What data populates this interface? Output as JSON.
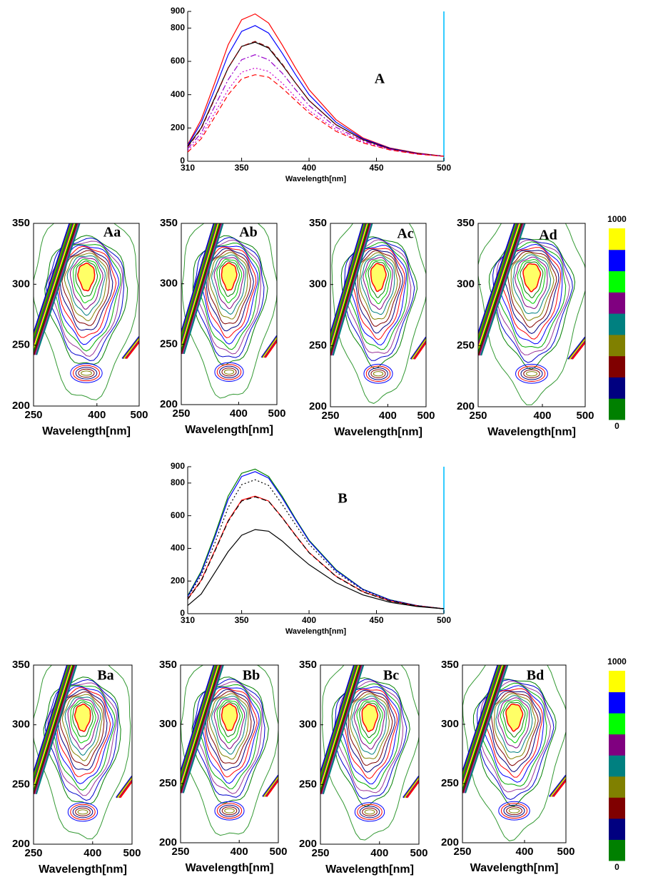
{
  "chart_data": [
    {
      "type": "line",
      "label": "A",
      "xlabel": "Wavelength[nm]",
      "x": [
        310,
        320,
        330,
        340,
        350,
        360,
        370,
        380,
        390,
        400,
        420,
        440,
        460,
        480,
        500
      ],
      "xlim": [
        310,
        500
      ],
      "xticks": [
        310,
        350,
        400,
        450,
        500
      ],
      "ylim": [
        0,
        900
      ],
      "yticks": [
        0,
        200,
        400,
        600,
        800,
        900
      ],
      "series": [
        {
          "color": "#ff0000",
          "dash": "solid",
          "values": [
            100,
            250,
            470,
            700,
            850,
            885,
            830,
            700,
            560,
            430,
            250,
            140,
            80,
            50,
            30
          ]
        },
        {
          "color": "#0000ff",
          "dash": "solid",
          "values": [
            95,
            230,
            430,
            640,
            780,
            815,
            770,
            650,
            520,
            400,
            235,
            135,
            78,
            48,
            30
          ]
        },
        {
          "color": "#000000",
          "dash": "solid",
          "values": [
            90,
            200,
            380,
            560,
            690,
            715,
            680,
            580,
            470,
            365,
            220,
            130,
            75,
            47,
            30
          ]
        },
        {
          "color": "#800000",
          "dash": "dashed",
          "values": [
            85,
            195,
            375,
            560,
            690,
            720,
            685,
            585,
            470,
            365,
            220,
            128,
            74,
            46,
            30
          ]
        },
        {
          "color": "#9900cc",
          "dash": "dashdot",
          "values": [
            75,
            170,
            330,
            490,
            610,
            640,
            610,
            530,
            430,
            335,
            205,
            122,
            72,
            45,
            30
          ]
        },
        {
          "color": "#cc00cc",
          "dash": "dotted",
          "values": [
            65,
            150,
            290,
            430,
            535,
            560,
            540,
            470,
            385,
            305,
            190,
            115,
            70,
            44,
            30
          ]
        },
        {
          "color": "#ff0000",
          "dash": "dashed",
          "values": [
            55,
            135,
            265,
            400,
            495,
            520,
            505,
            440,
            365,
            290,
            180,
            110,
            68,
            43,
            30
          ]
        }
      ]
    },
    {
      "type": "contour",
      "label": "Aa",
      "xlabel": "Wavelength[nm]",
      "xlim": [
        250,
        500
      ],
      "xticks": [
        250,
        400,
        500
      ],
      "ylim": [
        200,
        350
      ],
      "yticks": [
        200,
        250,
        300,
        350
      ]
    },
    {
      "type": "contour",
      "label": "Ab",
      "xlabel": "Wavelength[nm]",
      "xlim": [
        250,
        500
      ],
      "xticks": [
        250,
        400,
        500
      ],
      "ylim": [
        200,
        350
      ],
      "yticks": [
        200,
        250,
        300,
        350
      ]
    },
    {
      "type": "contour",
      "label": "Ac",
      "xlabel": "Wavelength[nm]",
      "xlim": [
        250,
        500
      ],
      "xticks": [
        250,
        400,
        500
      ],
      "ylim": [
        200,
        350
      ],
      "yticks": [
        200,
        250,
        300,
        350
      ]
    },
    {
      "type": "contour",
      "label": "Ad",
      "xlabel": "Wavelength[nm]",
      "xlim": [
        250,
        500
      ],
      "xticks": [
        250,
        400,
        500
      ],
      "ylim": [
        200,
        350
      ],
      "yticks": [
        200,
        250,
        300,
        350
      ]
    },
    {
      "type": "colorbar",
      "ylim": [
        0,
        1000
      ],
      "yticks": [
        0,
        1000
      ],
      "colors": [
        "#008000",
        "#000080",
        "#800000",
        "#808000",
        "#008080",
        "#800080",
        "#00ff00",
        "#0000ff",
        "#ffff00"
      ]
    },
    {
      "type": "line",
      "label": "B",
      "xlabel": "Wavelength[nm]",
      "x": [
        310,
        320,
        330,
        340,
        350,
        360,
        370,
        380,
        390,
        400,
        420,
        440,
        460,
        480,
        500
      ],
      "xlim": [
        310,
        500
      ],
      "xticks": [
        310,
        350,
        400,
        450,
        500
      ],
      "ylim": [
        0,
        900
      ],
      "yticks": [
        0,
        200,
        400,
        600,
        800,
        900
      ],
      "series": [
        {
          "color": "#008000",
          "dash": "solid",
          "values": [
            110,
            260,
            480,
            720,
            860,
            885,
            840,
            720,
            580,
            450,
            270,
            150,
            85,
            50,
            30
          ]
        },
        {
          "color": "#0000ff",
          "dash": "solid",
          "values": [
            105,
            250,
            465,
            700,
            840,
            870,
            830,
            710,
            575,
            445,
            265,
            148,
            84,
            50,
            30
          ]
        },
        {
          "color": "#000000",
          "dash": "dotted",
          "values": [
            100,
            235,
            430,
            650,
            790,
            820,
            785,
            670,
            545,
            425,
            255,
            145,
            82,
            49,
            30
          ]
        },
        {
          "color": "#ff0000",
          "dash": "solid",
          "values": [
            90,
            205,
            385,
            570,
            695,
            720,
            690,
            590,
            480,
            375,
            230,
            135,
            78,
            48,
            30
          ]
        },
        {
          "color": "#000000",
          "dash": "dashed",
          "values": [
            88,
            200,
            380,
            565,
            690,
            715,
            688,
            588,
            478,
            373,
            228,
            133,
            77,
            47,
            30
          ]
        },
        {
          "color": "#000000",
          "dash": "solid",
          "values": [
            50,
            120,
            250,
            380,
            480,
            515,
            505,
            445,
            370,
            300,
            190,
            115,
            70,
            44,
            30
          ]
        }
      ]
    },
    {
      "type": "contour",
      "label": "Ba",
      "xlabel": "Wavelength[nm]",
      "xlim": [
        250,
        500
      ],
      "xticks": [
        250,
        400,
        500
      ],
      "ylim": [
        200,
        350
      ],
      "yticks": [
        200,
        250,
        300,
        350
      ]
    },
    {
      "type": "contour",
      "label": "Bb",
      "xlabel": "Wavelength[nm]",
      "xlim": [
        250,
        500
      ],
      "xticks": [
        250,
        400,
        500
      ],
      "ylim": [
        200,
        350
      ],
      "yticks": [
        200,
        250,
        300,
        350
      ]
    },
    {
      "type": "contour",
      "label": "Bc",
      "xlabel": "Wavelength[nm]",
      "xlim": [
        250,
        500
      ],
      "xticks": [
        250,
        400,
        500
      ],
      "ylim": [
        200,
        350
      ],
      "yticks": [
        200,
        250,
        300,
        350
      ]
    },
    {
      "type": "contour",
      "label": "Bd",
      "xlabel": "Wavelength[nm]",
      "xlim": [
        250,
        500
      ],
      "xticks": [
        250,
        400,
        500
      ],
      "ylim": [
        200,
        350
      ],
      "yticks": [
        200,
        250,
        300,
        350
      ]
    },
    {
      "type": "colorbar",
      "ylim": [
        0,
        1000
      ],
      "yticks": [
        0,
        1000
      ],
      "colors": [
        "#008000",
        "#000080",
        "#800000",
        "#808000",
        "#008080",
        "#800080",
        "#00ff00",
        "#0000ff",
        "#ffff00"
      ]
    }
  ]
}
